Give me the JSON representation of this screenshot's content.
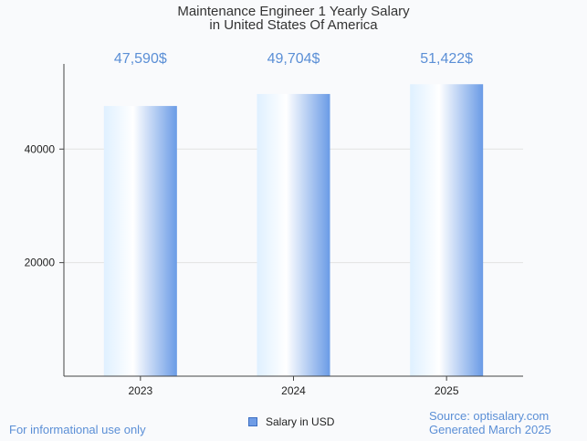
{
  "chart_data": {
    "type": "bar",
    "title_lines": [
      "Maintenance Engineer 1 Yearly Salary",
      "in United States Of America"
    ],
    "categories": [
      "2023",
      "2024",
      "2025"
    ],
    "series": [
      {
        "name": "Salary in USD",
        "values": [
          47590,
          49704,
          51422
        ]
      }
    ],
    "data_labels": [
      "47,590$",
      "49,704$",
      "51,422$"
    ],
    "y_ticks": [
      20000,
      40000
    ],
    "y_tick_labels": [
      "20000",
      "40000"
    ],
    "ylim": [
      0,
      55000
    ],
    "grid": true,
    "legend_position": "bottom-center"
  },
  "colors": {
    "bar_light": "#dff0ff",
    "bar_dark": "#6a9be6",
    "label": "#5b8fd6",
    "axis": "#444444",
    "grid": "#e2e2e2"
  },
  "footer": {
    "note": "For informational use only",
    "source": "Source: optisalary.com",
    "generated": "Generated March 2025"
  }
}
